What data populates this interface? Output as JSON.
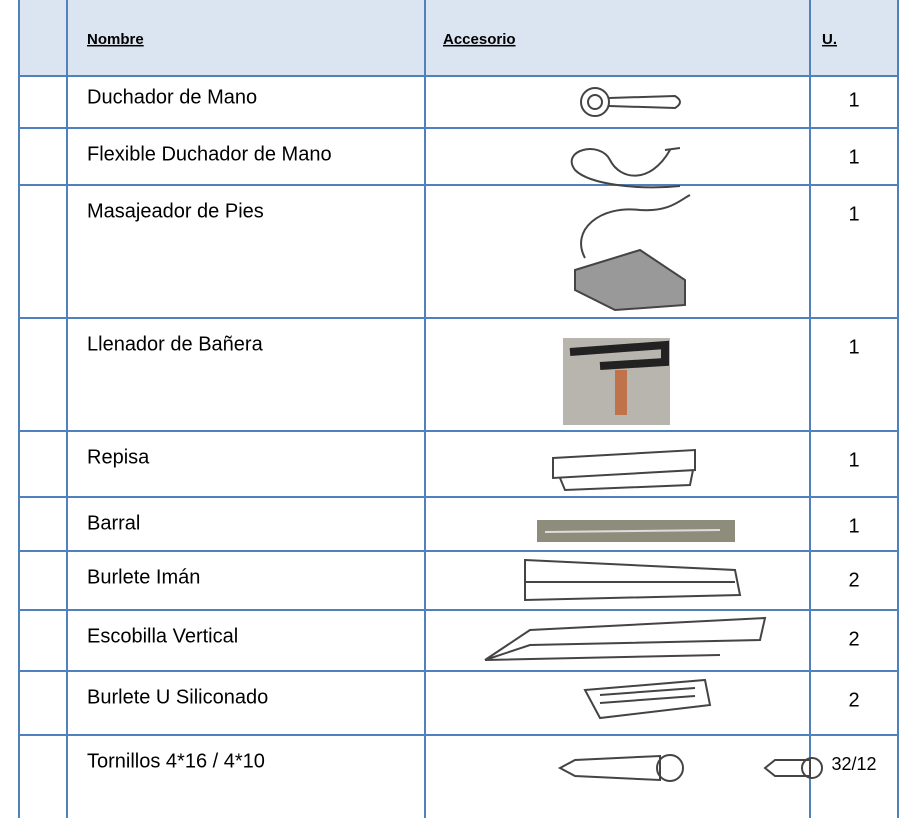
{
  "table": {
    "header": [
      "Nombre",
      "Accesorio",
      "U."
    ],
    "rows": [
      {
        "name": "Duchador de Mano",
        "units": "1"
      },
      {
        "name": "Flexible Duchador de Mano",
        "units": "1"
      },
      {
        "name": "Masajeador de Pies",
        "units": "1"
      },
      {
        "name": "Llenador de Bañera",
        "units": "1"
      },
      {
        "name": "Repisa",
        "units": "1"
      },
      {
        "name": "Barral",
        "units": "1"
      },
      {
        "name": "Burlete Imán",
        "units": "2"
      },
      {
        "name": "Escobilla Vertical",
        "units": "2"
      },
      {
        "name": "Burlete U Siliconado",
        "units": "2"
      },
      {
        "name": "Tornillos 4*16 / 4*10",
        "units": "32/12"
      }
    ]
  }
}
